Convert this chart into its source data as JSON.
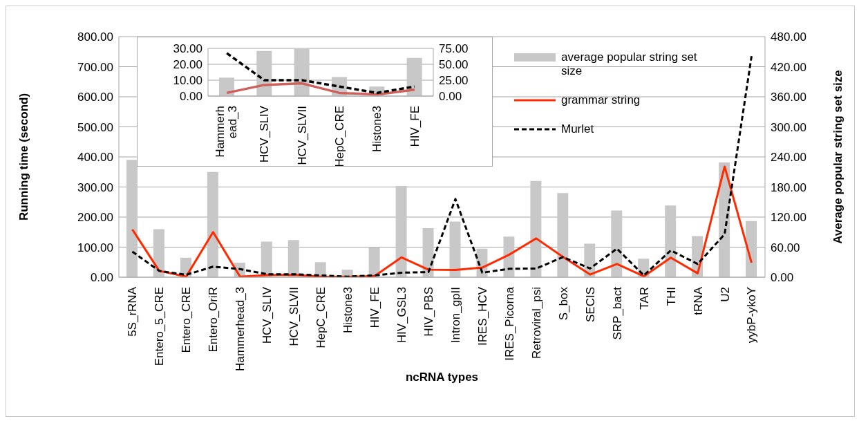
{
  "chart_data": [
    {
      "type": "bar",
      "xlabel": "ncRNA types",
      "ylabel": "Running time (second)",
      "y2label": "Average popular string set size",
      "categories": [
        "5S_rRNA",
        "Entero_5_CRE",
        "Entero_CRE",
        "Entero_OriR",
        "Hammerhead_3",
        "HCV_SLIV",
        "HCV_SLVII",
        "HepC_CRE",
        "Histone3",
        "HIV_FE",
        "HIV_GSL3",
        "HIV_PBS",
        "Intron_gpII",
        "IRES_HCV",
        "IRES_Picorna",
        "Retroviral_psi",
        "S_box",
        "SECIS",
        "SRP_bact",
        "TAR",
        "THI",
        "tRNA",
        "U2",
        "yybP-ykoY"
      ],
      "series": [
        {
          "name": "average popular string set size",
          "axis": "y2",
          "color": "#c8c8c8",
          "values": [
            234,
            96,
            39,
            210,
            29,
            71,
            74,
            30,
            15,
            60,
            182,
            98,
            111,
            57,
            81,
            192,
            168,
            67,
            133,
            37,
            143,
            82,
            229,
            112
          ]
        },
        {
          "name": "grammar string",
          "type": "line",
          "color": "#ff2a00",
          "values": [
            159,
            21,
            2,
            150,
            2,
            7,
            8,
            2,
            1,
            4,
            66,
            25,
            24,
            32,
            75,
            129,
            67,
            9,
            44,
            3,
            65,
            13,
            368,
            48
          ]
        },
        {
          "name": "Murlet",
          "type": "line",
          "color": "#000000",
          "line_style": "dashed",
          "values": [
            85,
            21,
            8,
            35,
            27,
            10,
            10,
            6,
            2,
            6,
            15,
            17,
            260,
            15,
            28,
            29,
            67,
            29,
            95,
            6,
            89,
            44,
            143,
            735
          ]
        }
      ],
      "ylim": [
        0,
        800
      ],
      "yticks": [
        {
          "value": 0,
          "label": "0.00"
        },
        {
          "value": 100,
          "label": "100.00"
        },
        {
          "value": 200,
          "label": "200.00"
        },
        {
          "value": 300,
          "label": "300.00"
        },
        {
          "value": 400,
          "label": "400.00"
        },
        {
          "value": 500,
          "label": "500.00"
        },
        {
          "value": 600,
          "label": "600.00"
        },
        {
          "value": 700,
          "label": "700.00"
        },
        {
          "value": 800,
          "label": "800.00"
        }
      ],
      "y2lim": [
        0,
        480
      ],
      "y2ticks": [
        {
          "value": 0,
          "label": "0.00"
        },
        {
          "value": 60,
          "label": "60.00"
        },
        {
          "value": 120,
          "label": "120.00"
        },
        {
          "value": 180,
          "label": "180.00"
        },
        {
          "value": 240,
          "label": "240.00"
        },
        {
          "value": 300,
          "label": "300.00"
        },
        {
          "value": 360,
          "label": "360.00"
        },
        {
          "value": 420,
          "label": "420.00"
        },
        {
          "value": 480,
          "label": "480.00"
        }
      ],
      "grid": "y",
      "legend": "top right",
      "marker": "none"
    },
    {
      "type": "bar",
      "categories": [
        "Hammerhead_3",
        "HCV_SLIV",
        "HCV_SLVII",
        "HepC_CRE",
        "Histone3",
        "HIV_FE"
      ],
      "series": [
        {
          "axis": "y2",
          "color": "#c8c8c8",
          "values": [
            29,
            71,
            74,
            30,
            15,
            60
          ]
        },
        {
          "type": "line",
          "color": "#d0605a",
          "values": [
            2,
            7,
            8,
            2,
            1,
            4
          ]
        },
        {
          "type": "line",
          "color": "#000000",
          "line_style": "dashed",
          "values": [
            27,
            10,
            10,
            6,
            2,
            6
          ]
        }
      ],
      "ylim": [
        0,
        30
      ],
      "yticks": [
        {
          "value": 0,
          "label": "0.00"
        },
        {
          "value": 10,
          "label": "10.00"
        },
        {
          "value": 20,
          "label": "20.00"
        },
        {
          "value": 30,
          "label": "30.00"
        }
      ],
      "y2lim": [
        0,
        75
      ],
      "y2ticks": [
        {
          "value": 0,
          "label": "0.00"
        },
        {
          "value": 25,
          "label": "25.00"
        },
        {
          "value": 50,
          "label": "50.00"
        },
        {
          "value": 75,
          "label": "75.00"
        }
      ],
      "grid": "y",
      "marker": "none"
    }
  ]
}
